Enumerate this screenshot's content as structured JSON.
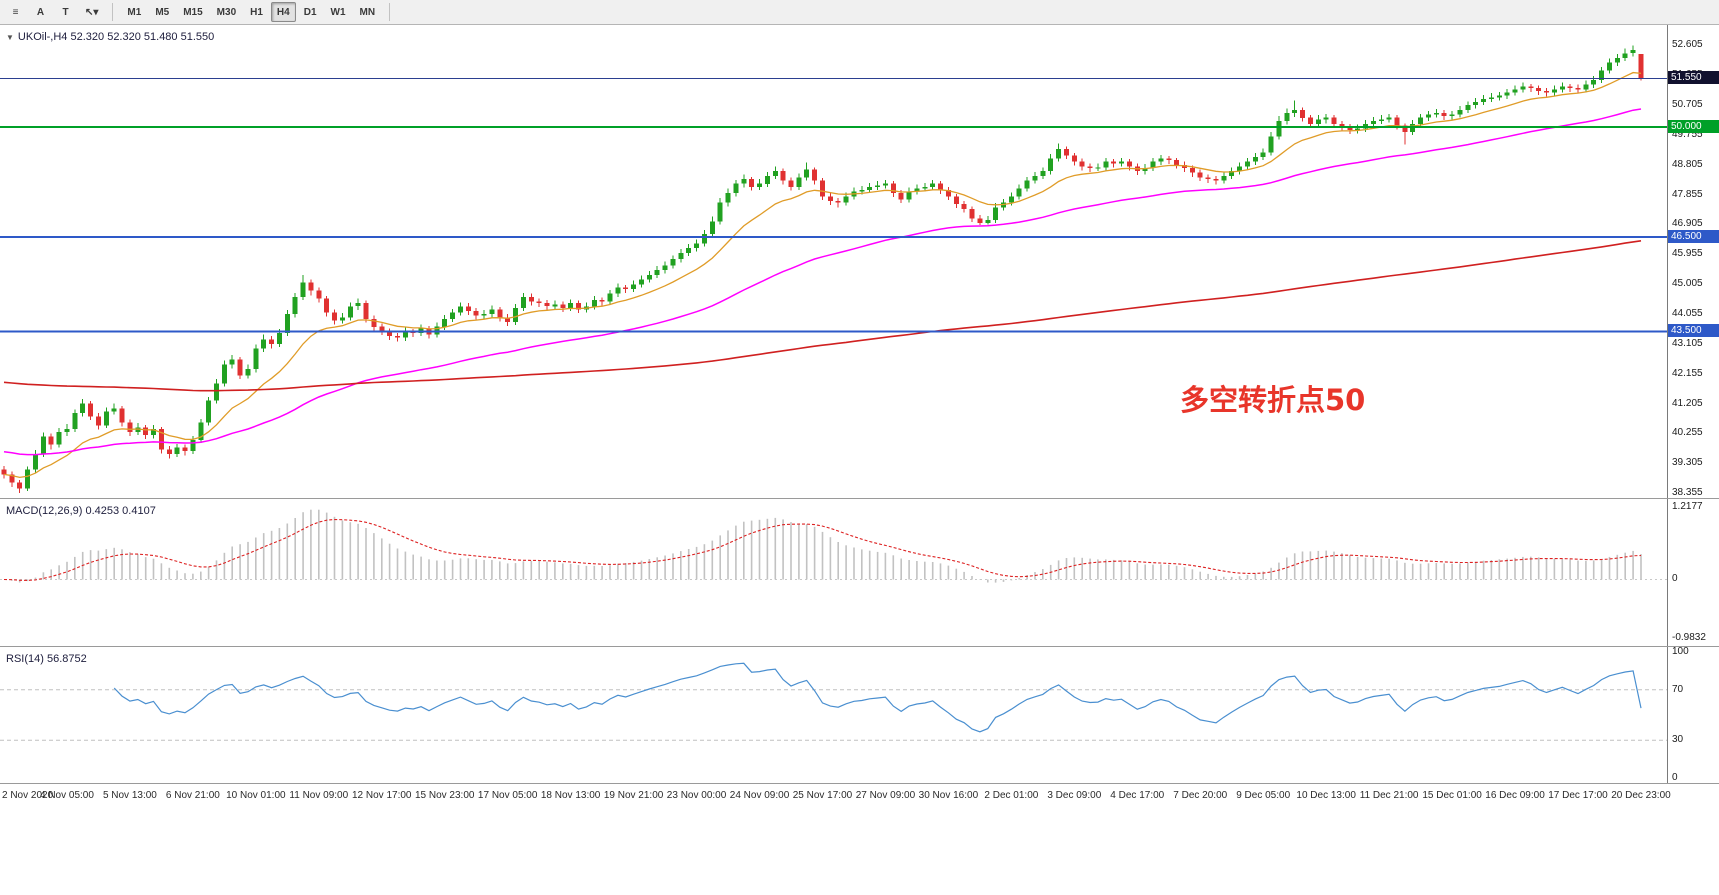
{
  "toolbar": {
    "tools": [
      {
        "name": "charts-list-icon",
        "glyph": "≡"
      },
      {
        "name": "text-label-tool-icon",
        "glyph": "A"
      },
      {
        "name": "text-box-tool-icon",
        "glyph": "T"
      },
      {
        "name": "cursor-tool-dropdown-icon",
        "glyph": "↖▾"
      }
    ],
    "timeframes": [
      "M1",
      "M5",
      "M15",
      "M30",
      "H1",
      "H4",
      "D1",
      "W1",
      "MN"
    ],
    "active_timeframe": "H4"
  },
  "chart_data": {
    "type": "candlestick",
    "symbol": "UKOil-,H4",
    "ohlc_display": "52.320 52.320 51.480 51.550",
    "annotation": {
      "text": "多空转折点50",
      "color": "#e8352a"
    },
    "colors": {
      "up": "#21a121",
      "down": "#e03131",
      "background": "#ffffff"
    },
    "price_axis": {
      "top_price": 53.25,
      "bottom_price": 38.2,
      "ticks": [
        52.605,
        51.655,
        50.705,
        49.755,
        48.805,
        47.855,
        46.905,
        45.955,
        45.005,
        44.055,
        43.105,
        42.155,
        41.205,
        40.255,
        39.305,
        38.355
      ]
    },
    "levels": [
      {
        "price": 51.55,
        "label": "51.550",
        "color": "#2b3f90",
        "width": 1.2,
        "label_bg": "#11112e"
      },
      {
        "price": 50.0,
        "label": "50.000",
        "color": "#00a028",
        "width": 2,
        "label_bg": "#00a028"
      },
      {
        "price": 46.5,
        "label": "46.500",
        "color": "#2e59c8",
        "width": 2,
        "label_bg": "#2e59c8"
      },
      {
        "price": 43.5,
        "label": "43.500",
        "color": "#2e59c8",
        "width": 2,
        "label_bg": "#2e59c8"
      }
    ],
    "overlays": [
      {
        "name": "ma-fast-orange",
        "period": 13,
        "seed": 38.95,
        "color": "#e09c28",
        "width": 1.3
      },
      {
        "name": "ma-mid-magenta",
        "period": 55,
        "seed": 39.7,
        "color": "#ff00ff",
        "width": 1.5
      },
      {
        "name": "ma-slow-red",
        "period": 300,
        "seed": 41.9,
        "color": "#d02020",
        "width": 1.6
      }
    ],
    "time_axis": {
      "candles_per_label": 8,
      "labels": [
        "2 Nov 2020",
        "4 Nov 05:00",
        "5 Nov 13:00",
        "6 Nov 21:00",
        "10 Nov 01:00",
        "11 Nov 09:00",
        "12 Nov 17:00",
        "15 Nov 23:00",
        "17 Nov 05:00",
        "18 Nov 13:00",
        "19 Nov 21:00",
        "23 Nov 00:00",
        "24 Nov 09:00",
        "25 Nov 17:00",
        "27 Nov 09:00",
        "30 Nov 16:00",
        "2 Dec 01:00",
        "3 Dec 09:00",
        "4 Dec 17:00",
        "7 Dec 20:00",
        "9 Dec 05:00",
        "10 Dec 13:00",
        "11 Dec 21:00",
        "15 Dec 01:00",
        "16 Dec 09:00",
        "17 Dec 17:00",
        "20 Dec 23:00"
      ]
    },
    "indicators": {
      "macd": {
        "legend": "MACD(12,26,9) 0.4253 0.4107",
        "fast": 12,
        "slow": 26,
        "signal_period": 9,
        "axis_max": 1.2177,
        "axis_min": -0.9832,
        "axis_ticks": [
          {
            "v": 1.2177,
            "label": "1.2177"
          },
          {
            "v": 0,
            "label": "0"
          },
          {
            "v": -0.9832,
            "label": "-0.9832"
          }
        ],
        "histogram_color": "#c2c2c2",
        "signal_color": "#dd2222"
      },
      "rsi": {
        "legend": "RSI(14) 56.8752",
        "period": 14,
        "color": "#4a8fd0",
        "level_lines": [
          70,
          30
        ],
        "axis_ticks": [
          {
            "v": 100,
            "label": "100"
          },
          {
            "v": 70,
            "label": "70"
          },
          {
            "v": 30,
            "label": "30"
          },
          {
            "v": 0,
            "label": "0"
          }
        ]
      }
    },
    "candles": [
      [
        39.1,
        39.22,
        38.82,
        38.95
      ],
      [
        38.95,
        39.05,
        38.55,
        38.7
      ],
      [
        38.7,
        38.78,
        38.36,
        38.5
      ],
      [
        38.5,
        39.2,
        38.42,
        39.1
      ],
      [
        39.1,
        39.72,
        39.0,
        39.6
      ],
      [
        39.6,
        40.28,
        39.5,
        40.15
      ],
      [
        40.15,
        40.25,
        39.75,
        39.9
      ],
      [
        39.9,
        40.42,
        39.8,
        40.3
      ],
      [
        40.3,
        40.55,
        40.18,
        40.4
      ],
      [
        40.4,
        41.02,
        40.3,
        40.9
      ],
      [
        40.9,
        41.35,
        40.8,
        41.2
      ],
      [
        41.2,
        41.28,
        40.68,
        40.8
      ],
      [
        40.8,
        40.9,
        40.38,
        40.5
      ],
      [
        40.5,
        41.08,
        40.42,
        40.95
      ],
      [
        40.95,
        41.2,
        40.85,
        41.05
      ],
      [
        41.05,
        41.12,
        40.48,
        40.6
      ],
      [
        40.6,
        40.7,
        40.18,
        40.3
      ],
      [
        40.3,
        40.58,
        40.2,
        40.45
      ],
      [
        40.45,
        40.52,
        40.08,
        40.2
      ],
      [
        40.2,
        40.52,
        40.1,
        40.4
      ],
      [
        40.4,
        40.46,
        39.62,
        39.75
      ],
      [
        39.75,
        39.85,
        39.45,
        39.6
      ],
      [
        39.6,
        39.92,
        39.5,
        39.8
      ],
      [
        39.8,
        39.9,
        39.55,
        39.7
      ],
      [
        39.7,
        40.18,
        39.6,
        40.05
      ],
      [
        40.05,
        40.72,
        39.95,
        40.6
      ],
      [
        40.6,
        41.42,
        40.5,
        41.3
      ],
      [
        41.3,
        41.98,
        41.2,
        41.85
      ],
      [
        41.85,
        42.58,
        41.75,
        42.45
      ],
      [
        42.45,
        42.75,
        42.32,
        42.6
      ],
      [
        42.6,
        42.68,
        41.98,
        42.1
      ],
      [
        42.1,
        42.45,
        42.0,
        42.3
      ],
      [
        42.3,
        43.08,
        42.2,
        42.95
      ],
      [
        42.95,
        43.4,
        42.85,
        43.25
      ],
      [
        43.25,
        43.35,
        42.95,
        43.1
      ],
      [
        43.1,
        43.58,
        43.0,
        43.45
      ],
      [
        43.45,
        44.18,
        43.35,
        44.05
      ],
      [
        44.05,
        44.72,
        43.95,
        44.6
      ],
      [
        44.6,
        45.3,
        44.5,
        45.05
      ],
      [
        45.05,
        45.15,
        44.65,
        44.8
      ],
      [
        44.8,
        44.9,
        44.42,
        44.55
      ],
      [
        44.55,
        44.62,
        43.98,
        44.1
      ],
      [
        44.1,
        44.2,
        43.72,
        43.85
      ],
      [
        43.85,
        44.08,
        43.75,
        43.95
      ],
      [
        43.95,
        44.42,
        43.85,
        44.3
      ],
      [
        44.3,
        44.55,
        44.18,
        44.4
      ],
      [
        44.4,
        44.48,
        43.78,
        43.9
      ],
      [
        43.9,
        44.0,
        43.52,
        43.65
      ],
      [
        43.65,
        43.75,
        43.38,
        43.5
      ],
      [
        43.5,
        43.6,
        43.22,
        43.35
      ],
      [
        43.35,
        43.45,
        43.18,
        43.3
      ],
      [
        43.3,
        43.62,
        43.2,
        43.5
      ],
      [
        43.5,
        43.58,
        43.32,
        43.45
      ],
      [
        43.45,
        43.72,
        43.35,
        43.6
      ],
      [
        43.6,
        43.68,
        43.28,
        43.4
      ],
      [
        43.4,
        43.78,
        43.3,
        43.65
      ],
      [
        43.65,
        44.02,
        43.55,
        43.9
      ],
      [
        43.9,
        44.22,
        43.8,
        44.1
      ],
      [
        44.1,
        44.42,
        44.0,
        44.3
      ],
      [
        44.3,
        44.4,
        44.02,
        44.15
      ],
      [
        44.15,
        44.25,
        43.88,
        44.0
      ],
      [
        44.0,
        44.18,
        43.9,
        44.05
      ],
      [
        44.05,
        44.32,
        43.95,
        44.2
      ],
      [
        44.2,
        44.28,
        43.82,
        43.95
      ],
      [
        43.95,
        44.05,
        43.68,
        43.8
      ],
      [
        43.8,
        44.38,
        43.7,
        44.25
      ],
      [
        44.25,
        44.72,
        44.15,
        44.6
      ],
      [
        44.6,
        44.7,
        44.32,
        44.45
      ],
      [
        44.45,
        44.55,
        44.28,
        44.4
      ],
      [
        44.4,
        44.5,
        44.18,
        44.3
      ],
      [
        44.3,
        44.48,
        44.2,
        44.35
      ],
      [
        44.35,
        44.45,
        44.12,
        44.25
      ],
      [
        44.25,
        44.52,
        44.15,
        44.4
      ],
      [
        44.4,
        44.48,
        44.08,
        44.2
      ],
      [
        44.2,
        44.42,
        44.1,
        44.3
      ],
      [
        44.3,
        44.62,
        44.2,
        44.5
      ],
      [
        44.5,
        44.58,
        44.32,
        44.45
      ],
      [
        44.45,
        44.82,
        44.35,
        44.7
      ],
      [
        44.7,
        45.02,
        44.6,
        44.9
      ],
      [
        44.9,
        44.98,
        44.72,
        44.85
      ],
      [
        44.85,
        45.12,
        44.75,
        45.0
      ],
      [
        45.0,
        45.28,
        44.9,
        45.15
      ],
      [
        45.15,
        45.42,
        45.05,
        45.3
      ],
      [
        45.3,
        45.58,
        45.2,
        45.45
      ],
      [
        45.45,
        45.72,
        45.35,
        45.6
      ],
      [
        45.6,
        45.92,
        45.5,
        45.8
      ],
      [
        45.8,
        46.12,
        45.7,
        46.0
      ],
      [
        46.0,
        46.28,
        45.9,
        46.15
      ],
      [
        46.15,
        46.42,
        46.05,
        46.3
      ],
      [
        46.3,
        46.72,
        46.2,
        46.6
      ],
      [
        46.6,
        47.15,
        46.5,
        47.0
      ],
      [
        47.0,
        47.75,
        46.9,
        47.6
      ],
      [
        47.6,
        48.05,
        47.48,
        47.9
      ],
      [
        47.9,
        48.32,
        47.8,
        48.2
      ],
      [
        48.2,
        48.5,
        48.08,
        48.35
      ],
      [
        48.35,
        48.42,
        47.98,
        48.1
      ],
      [
        48.1,
        48.35,
        48.0,
        48.2
      ],
      [
        48.2,
        48.58,
        48.1,
        48.45
      ],
      [
        48.45,
        48.75,
        48.35,
        48.6
      ],
      [
        48.6,
        48.68,
        48.18,
        48.3
      ],
      [
        48.3,
        48.4,
        47.98,
        48.1
      ],
      [
        48.1,
        48.52,
        48.0,
        48.4
      ],
      [
        48.4,
        48.88,
        48.3,
        48.65
      ],
      [
        48.65,
        48.72,
        48.18,
        48.3
      ],
      [
        48.3,
        48.38,
        47.68,
        47.8
      ],
      [
        47.8,
        47.9,
        47.52,
        47.65
      ],
      [
        47.65,
        47.75,
        47.45,
        47.6
      ],
      [
        47.6,
        47.92,
        47.5,
        47.8
      ],
      [
        47.8,
        48.08,
        47.7,
        47.95
      ],
      [
        47.95,
        48.12,
        47.85,
        48.0
      ],
      [
        48.0,
        48.22,
        47.9,
        48.1
      ],
      [
        48.1,
        48.28,
        48.0,
        48.15
      ],
      [
        48.15,
        48.32,
        48.05,
        48.2
      ],
      [
        48.2,
        48.28,
        47.78,
        47.9
      ],
      [
        47.9,
        48.0,
        47.58,
        47.7
      ],
      [
        47.7,
        48.08,
        47.6,
        47.95
      ],
      [
        47.95,
        48.18,
        47.85,
        48.05
      ],
      [
        48.05,
        48.22,
        47.95,
        48.1
      ],
      [
        48.1,
        48.32,
        48.0,
        48.2
      ],
      [
        48.2,
        48.28,
        47.88,
        48.0
      ],
      [
        48.0,
        48.1,
        47.68,
        47.8
      ],
      [
        47.8,
        47.88,
        47.42,
        47.55
      ],
      [
        47.55,
        47.65,
        47.28,
        47.4
      ],
      [
        47.4,
        47.48,
        46.98,
        47.1
      ],
      [
        47.1,
        47.2,
        46.88,
        46.95
      ],
      [
        46.95,
        47.18,
        46.9,
        47.05
      ],
      [
        47.05,
        47.58,
        46.95,
        47.45
      ],
      [
        47.45,
        47.72,
        47.35,
        47.6
      ],
      [
        47.6,
        47.92,
        47.5,
        47.8
      ],
      [
        47.8,
        48.18,
        47.7,
        48.05
      ],
      [
        48.05,
        48.42,
        47.95,
        48.3
      ],
      [
        48.3,
        48.58,
        48.2,
        48.45
      ],
      [
        48.45,
        48.72,
        48.35,
        48.6
      ],
      [
        48.6,
        49.15,
        48.5,
        49.0
      ],
      [
        49.0,
        49.48,
        48.9,
        49.3
      ],
      [
        49.3,
        49.38,
        48.98,
        49.1
      ],
      [
        49.1,
        49.18,
        48.78,
        48.9
      ],
      [
        48.9,
        49.0,
        48.62,
        48.75
      ],
      [
        48.75,
        48.85,
        48.58,
        48.7
      ],
      [
        48.7,
        48.84,
        48.6,
        48.72
      ],
      [
        48.72,
        49.02,
        48.62,
        48.9
      ],
      [
        48.9,
        48.98,
        48.72,
        48.85
      ],
      [
        48.85,
        49.02,
        48.75,
        48.9
      ],
      [
        48.9,
        48.98,
        48.62,
        48.75
      ],
      [
        48.75,
        48.85,
        48.48,
        48.6
      ],
      [
        48.6,
        48.82,
        48.5,
        48.7
      ],
      [
        48.7,
        49.02,
        48.6,
        48.9
      ],
      [
        48.9,
        49.12,
        48.8,
        49.0
      ],
      [
        49.0,
        49.08,
        48.82,
        48.95
      ],
      [
        48.95,
        49.02,
        48.68,
        48.8
      ],
      [
        48.8,
        48.9,
        48.58,
        48.7
      ],
      [
        48.7,
        48.78,
        48.42,
        48.55
      ],
      [
        48.55,
        48.65,
        48.28,
        48.4
      ],
      [
        48.4,
        48.5,
        48.22,
        48.35
      ],
      [
        48.35,
        48.45,
        48.18,
        48.3
      ],
      [
        48.3,
        48.58,
        48.2,
        48.45
      ],
      [
        48.45,
        48.72,
        48.35,
        48.6
      ],
      [
        48.6,
        48.88,
        48.5,
        48.75
      ],
      [
        48.75,
        49.02,
        48.65,
        48.9
      ],
      [
        48.9,
        49.18,
        48.8,
        49.05
      ],
      [
        49.05,
        49.32,
        48.95,
        49.2
      ],
      [
        49.2,
        49.85,
        49.1,
        49.7
      ],
      [
        49.7,
        50.35,
        49.6,
        50.2
      ],
      [
        50.2,
        50.6,
        50.08,
        50.45
      ],
      [
        50.45,
        50.85,
        50.32,
        50.55
      ],
      [
        50.55,
        50.62,
        50.18,
        50.3
      ],
      [
        50.3,
        50.38,
        49.98,
        50.1
      ],
      [
        50.1,
        50.38,
        50.0,
        50.25
      ],
      [
        50.25,
        50.42,
        50.12,
        50.3
      ],
      [
        50.3,
        50.38,
        49.98,
        50.1
      ],
      [
        50.1,
        50.2,
        49.88,
        50.0
      ],
      [
        50.0,
        50.1,
        49.78,
        49.9
      ],
      [
        49.9,
        50.08,
        49.8,
        49.95
      ],
      [
        49.95,
        50.22,
        49.85,
        50.1
      ],
      [
        50.1,
        50.32,
        50.0,
        50.2
      ],
      [
        50.2,
        50.38,
        50.1,
        50.25
      ],
      [
        50.25,
        50.42,
        50.15,
        50.3
      ],
      [
        50.3,
        50.38,
        49.92,
        50.05
      ],
      [
        50.05,
        50.12,
        49.45,
        49.85
      ],
      [
        49.85,
        50.22,
        49.75,
        50.1
      ],
      [
        50.1,
        50.42,
        50.0,
        50.3
      ],
      [
        50.3,
        50.52,
        50.2,
        50.4
      ],
      [
        50.4,
        50.58,
        50.3,
        50.45
      ],
      [
        50.45,
        50.55,
        50.22,
        50.35
      ],
      [
        50.35,
        50.52,
        50.25,
        50.4
      ],
      [
        50.4,
        50.68,
        50.3,
        50.55
      ],
      [
        50.55,
        50.82,
        50.45,
        50.7
      ],
      [
        50.7,
        50.92,
        50.6,
        50.8
      ],
      [
        50.8,
        51.02,
        50.7,
        50.9
      ],
      [
        50.9,
        51.08,
        50.8,
        50.95
      ],
      [
        50.95,
        51.12,
        50.85,
        51.0
      ],
      [
        51.0,
        51.22,
        50.9,
        51.1
      ],
      [
        51.1,
        51.32,
        51.0,
        51.2
      ],
      [
        51.2,
        51.42,
        51.1,
        51.3
      ],
      [
        51.3,
        51.38,
        51.12,
        51.25
      ],
      [
        51.25,
        51.32,
        51.02,
        51.15
      ],
      [
        51.15,
        51.25,
        50.98,
        51.1
      ],
      [
        51.1,
        51.32,
        51.0,
        51.2
      ],
      [
        51.2,
        51.42,
        51.1,
        51.3
      ],
      [
        51.3,
        51.38,
        51.12,
        51.25
      ],
      [
        51.25,
        51.35,
        51.08,
        51.2
      ],
      [
        51.2,
        51.48,
        51.1,
        51.35
      ],
      [
        51.35,
        51.62,
        51.25,
        51.5
      ],
      [
        51.5,
        51.92,
        51.4,
        51.8
      ],
      [
        51.8,
        52.18,
        51.7,
        52.05
      ],
      [
        52.05,
        52.32,
        51.95,
        52.2
      ],
      [
        52.2,
        52.5,
        52.1,
        52.35
      ],
      [
        52.35,
        52.6,
        52.25,
        52.45
      ],
      [
        52.32,
        52.32,
        51.48,
        51.55
      ]
    ]
  }
}
